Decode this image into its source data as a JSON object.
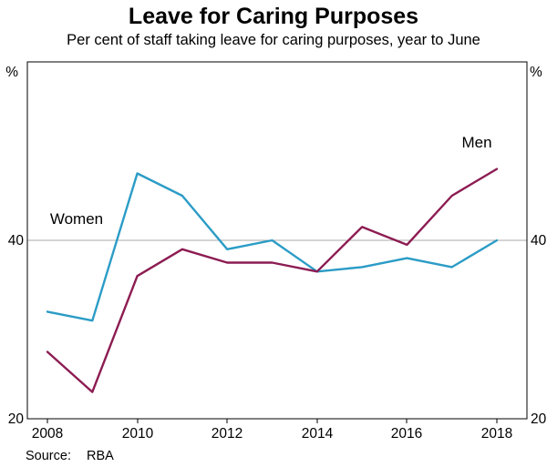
{
  "title": "Leave for Caring Purposes",
  "subtitle": "Per cent of staff taking leave for caring purposes, year to June",
  "source": {
    "label": "Source:",
    "value": "RBA"
  },
  "axes": {
    "unit_left": "%",
    "unit_right": "%",
    "y_tick_labels": [
      "20",
      "40"
    ],
    "x_tick_labels": [
      "2008",
      "2010",
      "2012",
      "2014",
      "2016",
      "2018"
    ]
  },
  "chart_data": {
    "type": "line",
    "title": "Leave for Caring Purposes",
    "subtitle": "Per cent of staff taking leave for caring purposes, year to June",
    "ylabel": "%",
    "ylim": [
      20,
      60
    ],
    "yticks": [
      20,
      40
    ],
    "gridlines": [
      40
    ],
    "grid": "horizontal-at-40-only",
    "legend_position": "inline-labels-on-lines",
    "x": [
      2008,
      2009,
      2010,
      2011,
      2012,
      2013,
      2014,
      2015,
      2016,
      2017,
      2018
    ],
    "x_tick_values": [
      2008,
      2010,
      2012,
      2014,
      2016,
      2018
    ],
    "series": [
      {
        "name": "Women",
        "color": "#2B9CC6",
        "values": [
          32,
          31,
          47.5,
          45,
          39,
          40,
          36.5,
          37,
          38,
          37,
          40
        ]
      },
      {
        "name": "Men",
        "color": "#8C1C52",
        "values": [
          27.5,
          23,
          36,
          39,
          37.5,
          37.5,
          36.5,
          41.5,
          39.5,
          45,
          48
        ]
      }
    ],
    "source": "RBA"
  }
}
